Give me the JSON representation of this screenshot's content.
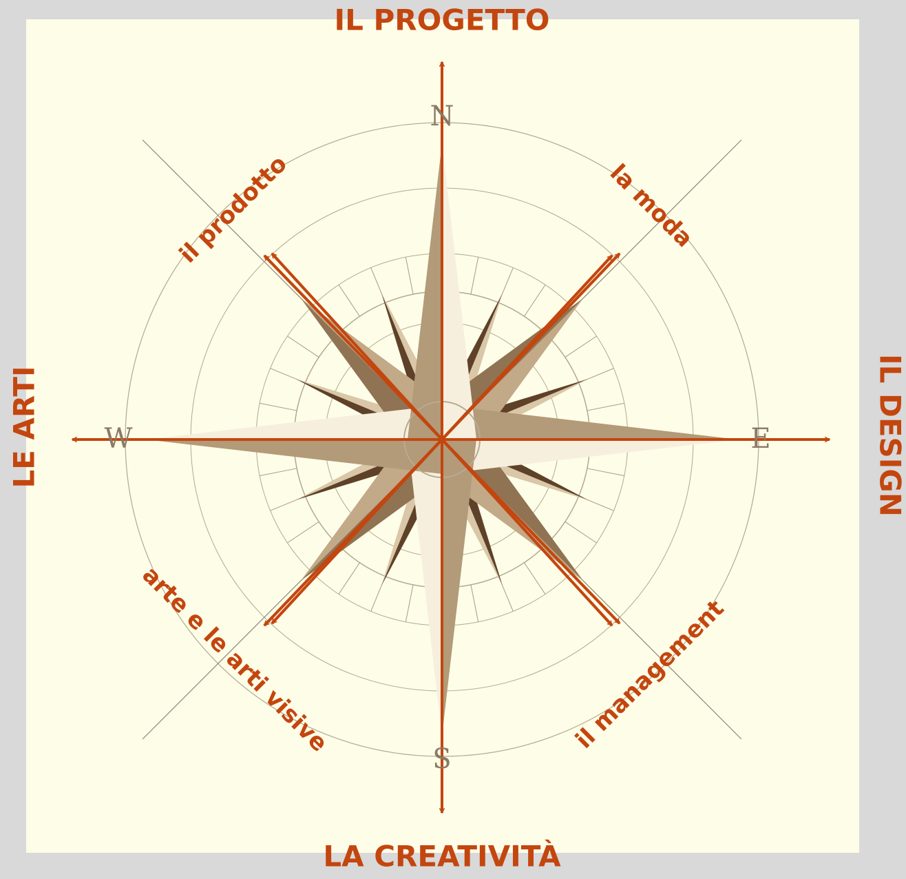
{
  "axes": {
    "top": "IL PROGETTO",
    "bottom": "LA CREATIVITÀ",
    "left": "LE  ARTI",
    "right": "IL DESIGN"
  },
  "diagonals": {
    "nw": "il  prodotto",
    "ne": "la  moda",
    "sw": "arte  e  le arti visive",
    "se": "il  management"
  },
  "compass_letters": {
    "n": "N",
    "e": "E",
    "s": "S",
    "w": "W"
  }
}
